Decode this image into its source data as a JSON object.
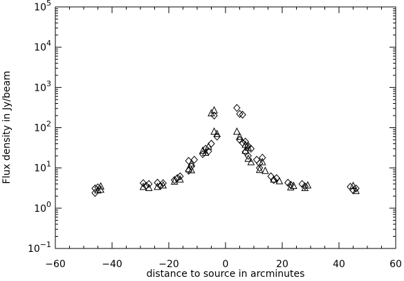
{
  "chart_data": {
    "type": "scatter",
    "title": "",
    "xlabel": "distance to source in arcminutes",
    "ylabel": "Flux density in Jy/beam",
    "xlim": [
      -60,
      60
    ],
    "ylim": [
      0.1,
      100000
    ],
    "yscale": "log",
    "grid": false,
    "x_ticks": [
      -60,
      -40,
      -20,
      0,
      20,
      40,
      60
    ],
    "x_tick_labels": [
      "−60",
      "−40",
      "−20",
      "0",
      "20",
      "40",
      "60"
    ],
    "y_tick_labels": [
      {
        "value": 0.1,
        "base": "10",
        "exp": "−1"
      },
      {
        "value": 1,
        "base": "10",
        "exp": "0"
      },
      {
        "value": 10,
        "base": "10",
        "exp": "1"
      },
      {
        "value": 100,
        "base": "10",
        "exp": "2"
      },
      {
        "value": 1000,
        "base": "10",
        "exp": "3"
      },
      {
        "value": 10000,
        "base": "10",
        "exp": "4"
      },
      {
        "value": 100000,
        "base": "10",
        "exp": "5"
      }
    ],
    "series": [
      {
        "marker": "diamond",
        "points": [
          {
            "x": -46,
            "y": 2.4
          },
          {
            "x": -46,
            "y": 3.1
          },
          {
            "x": -45,
            "y": 3.3
          },
          {
            "x": -29,
            "y": 4.2
          },
          {
            "x": -28,
            "y": 3.6
          },
          {
            "x": -27,
            "y": 4.0
          },
          {
            "x": -24,
            "y": 4.3
          },
          {
            "x": -23,
            "y": 3.6
          },
          {
            "x": -22,
            "y": 4.2
          },
          {
            "x": -18,
            "y": 5.0
          },
          {
            "x": -17,
            "y": 5.6
          },
          {
            "x": -16,
            "y": 6.2
          },
          {
            "x": -13,
            "y": 8.5
          },
          {
            "x": -13,
            "y": 15.0
          },
          {
            "x": -12,
            "y": 11.0
          },
          {
            "x": -11,
            "y": 16.0
          },
          {
            "x": -8,
            "y": 22.0
          },
          {
            "x": -7,
            "y": 30.0
          },
          {
            "x": -6,
            "y": 26.0
          },
          {
            "x": -5,
            "y": 40.0
          },
          {
            "x": -4,
            "y": 200.0
          },
          {
            "x": -3,
            "y": 60.0
          },
          {
            "x": 4,
            "y": 310.0
          },
          {
            "x": 5,
            "y": 220.0
          },
          {
            "x": 6,
            "y": 210.0
          },
          {
            "x": 5,
            "y": 50.0
          },
          {
            "x": 6,
            "y": 42.0
          },
          {
            "x": 7,
            "y": 45.0
          },
          {
            "x": 8,
            "y": 35.0
          },
          {
            "x": 9,
            "y": 30.0
          },
          {
            "x": 7,
            "y": 25.0
          },
          {
            "x": 8,
            "y": 20.0
          },
          {
            "x": 11,
            "y": 16.0
          },
          {
            "x": 12,
            "y": 13.0
          },
          {
            "x": 12,
            "y": 10.0
          },
          {
            "x": 13,
            "y": 18.0
          },
          {
            "x": 16,
            "y": 6.2
          },
          {
            "x": 17,
            "y": 5.0
          },
          {
            "x": 18,
            "y": 5.6
          },
          {
            "x": 22,
            "y": 4.3
          },
          {
            "x": 23,
            "y": 3.8
          },
          {
            "x": 27,
            "y": 4.0
          },
          {
            "x": 28,
            "y": 3.5
          },
          {
            "x": 44,
            "y": 3.4
          },
          {
            "x": 45,
            "y": 2.8
          },
          {
            "x": 46,
            "y": 3.1
          }
        ]
      },
      {
        "marker": "triangle",
        "points": [
          {
            "x": -45,
            "y": 2.8
          },
          {
            "x": -44,
            "y": 3.5
          },
          {
            "x": -44,
            "y": 2.9
          },
          {
            "x": -29,
            "y": 3.4
          },
          {
            "x": -27,
            "y": 3.2
          },
          {
            "x": -24,
            "y": 3.4
          },
          {
            "x": -22,
            "y": 3.7
          },
          {
            "x": -18,
            "y": 4.6
          },
          {
            "x": -16,
            "y": 5.2
          },
          {
            "x": -13,
            "y": 9.5
          },
          {
            "x": -12,
            "y": 13.0
          },
          {
            "x": -12,
            "y": 8.8
          },
          {
            "x": -8,
            "y": 27.0
          },
          {
            "x": -7,
            "y": 24.0
          },
          {
            "x": -6,
            "y": 34.0
          },
          {
            "x": -5,
            "y": 230.0
          },
          {
            "x": -4,
            "y": 270.0
          },
          {
            "x": -4,
            "y": 80.0
          },
          {
            "x": -3,
            "y": 70.0
          },
          {
            "x": 4,
            "y": 80.0
          },
          {
            "x": 5,
            "y": 60.0
          },
          {
            "x": 7,
            "y": 38.0
          },
          {
            "x": 8,
            "y": 32.0
          },
          {
            "x": 7,
            "y": 27.0
          },
          {
            "x": 8,
            "y": 17.0
          },
          {
            "x": 9,
            "y": 14.0
          },
          {
            "x": 12,
            "y": 9.0
          },
          {
            "x": 13,
            "y": 14.0
          },
          {
            "x": 14,
            "y": 8.5
          },
          {
            "x": 17,
            "y": 5.2
          },
          {
            "x": 19,
            "y": 4.7
          },
          {
            "x": 23,
            "y": 3.3
          },
          {
            "x": 24,
            "y": 3.6
          },
          {
            "x": 28,
            "y": 3.2
          },
          {
            "x": 29,
            "y": 3.7
          },
          {
            "x": 45,
            "y": 3.6
          },
          {
            "x": 46,
            "y": 2.7
          }
        ]
      }
    ]
  }
}
